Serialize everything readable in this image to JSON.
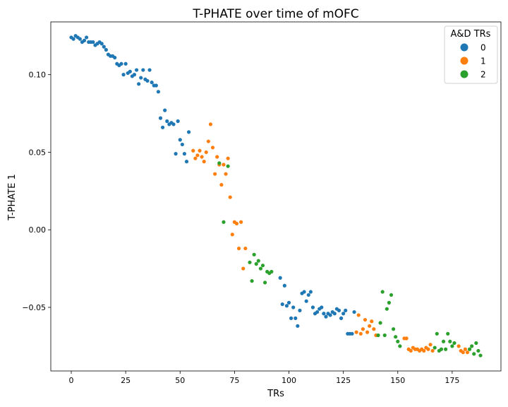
{
  "chart_data": {
    "type": "scatter",
    "title": "T-PHATE over time of mOFC",
    "xlabel": "TRs",
    "ylabel": "T-PHATE 1",
    "xlim": [
      -9.4,
      197.4
    ],
    "ylim": [
      -0.091,
      0.134
    ],
    "xticks": [
      0,
      25,
      50,
      75,
      100,
      125,
      150,
      175
    ],
    "xtick_labels": [
      "0",
      "25",
      "50",
      "75",
      "100",
      "125",
      "150",
      "175"
    ],
    "yticks": [
      -0.05,
      0.0,
      0.05,
      0.1
    ],
    "ytick_labels": [
      "−0.05",
      "0.00",
      "0.05",
      "0.10"
    ],
    "grid": false,
    "legend": {
      "title": "A&D TRs",
      "placement": "top-right",
      "entries": [
        {
          "label": "0",
          "color": "#1f77b4"
        },
        {
          "label": "1",
          "color": "#ff7f0e"
        },
        {
          "label": "2",
          "color": "#2ca02c"
        }
      ]
    },
    "series": [
      {
        "name": "0",
        "color": "#1f77b4",
        "x": [
          0,
          1,
          2,
          3,
          4,
          5,
          6,
          7,
          8,
          9,
          10,
          11,
          12,
          13,
          14,
          15,
          16,
          17,
          18,
          19,
          20,
          21,
          22,
          23,
          24,
          25,
          26,
          27,
          28,
          29,
          30,
          31,
          32,
          33,
          34,
          35,
          36,
          37,
          38,
          39,
          40,
          41,
          42,
          43,
          44,
          45,
          46,
          47,
          48,
          49,
          50,
          51,
          52,
          53,
          54,
          96,
          97,
          98,
          99,
          100,
          101,
          102,
          103,
          104,
          105,
          106,
          107,
          108,
          109,
          110,
          111,
          112,
          113,
          114,
          115,
          116,
          117,
          118,
          119,
          120,
          121,
          122,
          123,
          124,
          125,
          126,
          127,
          128,
          129,
          130
        ],
        "y": [
          0.124,
          0.123,
          0.125,
          0.124,
          0.123,
          0.121,
          0.122,
          0.124,
          0.121,
          0.121,
          0.121,
          0.119,
          0.12,
          0.121,
          0.12,
          0.118,
          0.116,
          0.113,
          0.112,
          0.112,
          0.111,
          0.107,
          0.106,
          0.107,
          0.1,
          0.107,
          0.101,
          0.102,
          0.099,
          0.1,
          0.103,
          0.094,
          0.098,
          0.103,
          0.097,
          0.096,
          0.103,
          0.095,
          0.093,
          0.093,
          0.089,
          0.072,
          0.066,
          0.077,
          0.07,
          0.068,
          0.069,
          0.068,
          0.049,
          0.07,
          0.058,
          0.055,
          0.049,
          0.044,
          0.063,
          -0.031,
          -0.048,
          -0.036,
          -0.049,
          -0.047,
          -0.057,
          -0.05,
          -0.057,
          -0.062,
          -0.052,
          -0.041,
          -0.04,
          -0.046,
          -0.042,
          -0.04,
          -0.05,
          -0.054,
          -0.053,
          -0.051,
          -0.05,
          -0.054,
          -0.056,
          -0.054,
          -0.055,
          -0.053,
          -0.054,
          -0.051,
          -0.052,
          -0.057,
          -0.054,
          -0.052,
          -0.067,
          -0.067,
          -0.067,
          -0.053
        ]
      },
      {
        "name": "1",
        "color": "#ff7f0e",
        "x": [
          56,
          57,
          58,
          59,
          60,
          61,
          62,
          63,
          64,
          65,
          66,
          67,
          68,
          69,
          70,
          71,
          72,
          73,
          74,
          75,
          76,
          77,
          78,
          79,
          80,
          131,
          132,
          133,
          134,
          135,
          136,
          137,
          138,
          139,
          140,
          153,
          154,
          155,
          156,
          157,
          158,
          159,
          160,
          161,
          162,
          163,
          164,
          165,
          166,
          178,
          179,
          180,
          181,
          182
        ],
        "y": [
          0.051,
          0.046,
          0.048,
          0.051,
          0.047,
          0.044,
          0.05,
          0.057,
          0.068,
          0.053,
          0.036,
          0.047,
          0.042,
          0.029,
          0.042,
          0.036,
          0.046,
          0.021,
          -0.003,
          0.005,
          0.004,
          -0.012,
          0.005,
          -0.025,
          -0.012,
          -0.066,
          -0.055,
          -0.067,
          -0.064,
          -0.058,
          -0.066,
          -0.062,
          -0.059,
          -0.064,
          -0.068,
          -0.07,
          -0.07,
          -0.077,
          -0.078,
          -0.076,
          -0.077,
          -0.077,
          -0.078,
          -0.077,
          -0.078,
          -0.076,
          -0.077,
          -0.074,
          -0.078,
          -0.075,
          -0.078,
          -0.079,
          -0.077,
          -0.079
        ]
      },
      {
        "name": "2",
        "color": "#2ca02c",
        "x": [
          68,
          70,
          72,
          82,
          83,
          84,
          85,
          86,
          87,
          88,
          89,
          90,
          91,
          92,
          141,
          142,
          143,
          144,
          145,
          146,
          147,
          148,
          149,
          150,
          151,
          167,
          168,
          169,
          170,
          171,
          172,
          173,
          174,
          175,
          176,
          183,
          184,
          185,
          186,
          187,
          188
        ],
        "y": [
          0.043,
          0.005,
          0.041,
          -0.021,
          -0.033,
          -0.016,
          -0.022,
          -0.02,
          -0.025,
          -0.023,
          -0.034,
          -0.027,
          -0.028,
          -0.027,
          -0.068,
          -0.06,
          -0.04,
          -0.068,
          -0.051,
          -0.047,
          -0.042,
          -0.064,
          -0.069,
          -0.072,
          -0.075,
          -0.076,
          -0.067,
          -0.078,
          -0.077,
          -0.072,
          -0.077,
          -0.067,
          -0.072,
          -0.075,
          -0.073,
          -0.077,
          -0.075,
          -0.08,
          -0.073,
          -0.078,
          -0.081
        ]
      }
    ]
  }
}
